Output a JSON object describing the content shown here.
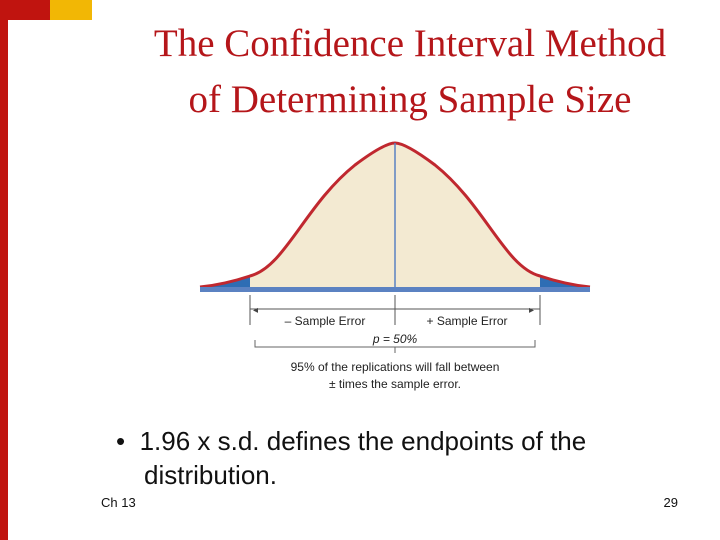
{
  "slide": {
    "title_line1": "The Confidence Interval Method",
    "title_line2": "of Determining Sample Size",
    "bullet_marker": "•",
    "bullet_text": "1.96 x s.d. defines the endpoints of the distribution.",
    "footer_left": "Ch 13",
    "page_number": "29"
  },
  "figure": {
    "label_minus": "– Sample Error",
    "label_plus": "+ Sample Error",
    "label_p": "p = 50%",
    "caption_line1": "95% of the replications will fall between",
    "caption_line2": "± times the sample error.",
    "colors": {
      "curve": "#c0282f",
      "fill": "#f3ead2",
      "tails": "#2e6db4",
      "axis": "#5b82c2"
    }
  }
}
